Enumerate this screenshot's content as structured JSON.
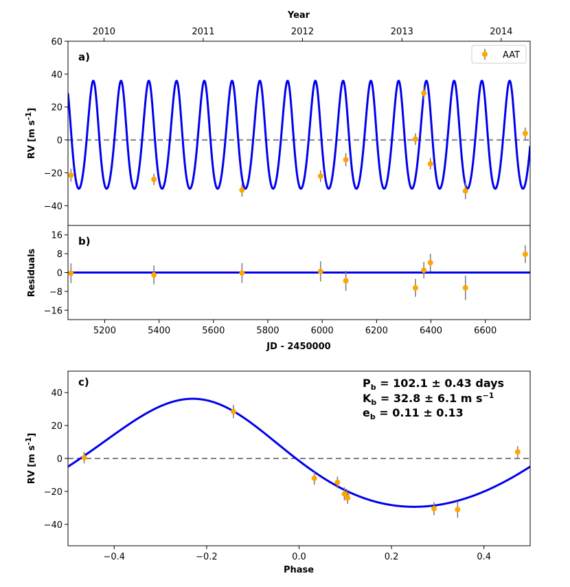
{
  "colors": {
    "model": "#0000ee",
    "points": "#ffa500",
    "errorbars": "#808080",
    "zero_line": "#808080"
  },
  "chart_data": [
    {
      "panel": "a",
      "type": "line",
      "label": "a)",
      "ylabel_main": "RV [m s",
      "ylabel_unit_exp": "-1",
      "ylabel_tail": "]",
      "ylim": [
        -52,
        60
      ],
      "yticks": [
        -40,
        -20,
        0,
        20,
        40,
        60
      ],
      "xlim": [
        5065,
        6765
      ],
      "top_axis": {
        "label": "Year",
        "ticks": [
          {
            "jd": 5197.5,
            "label": "2010"
          },
          {
            "jd": 5562.5,
            "label": "2011"
          },
          {
            "jd": 5927.5,
            "label": "2012"
          },
          {
            "jd": 6293.5,
            "label": "2013"
          },
          {
            "jd": 6658.5,
            "label": "2014"
          }
        ]
      },
      "legend": {
        "position": "top-right",
        "label": "AAT"
      },
      "model": {
        "K": 32.8,
        "P": 102.1,
        "e": 0.11,
        "offset": -0.3,
        "phase_ref_jd": 5065
      },
      "series": [
        {
          "name": "AAT",
          "x": [
            5076,
            5381,
            5705,
            5994,
            6087,
            6343,
            6374,
            6398,
            6527,
            6747
          ],
          "y": [
            -21.5,
            -24,
            -30.5,
            -22,
            -12,
            0.5,
            28.5,
            -14.5,
            -31,
            4
          ],
          "err": [
            4,
            3.5,
            4,
            3.5,
            4,
            3.5,
            4,
            3.5,
            5,
            3.5
          ]
        }
      ]
    },
    {
      "panel": "b",
      "type": "scatter",
      "label": "b)",
      "ylabel": "Residuals",
      "xlabel": "JD - 2450000",
      "ylim": [
        -20,
        20
      ],
      "yticks": [
        -16,
        -8,
        0,
        8,
        16
      ],
      "xlim": [
        5065,
        6765
      ],
      "xticks": [
        5200,
        5400,
        5600,
        5800,
        6000,
        6200,
        6400,
        6600
      ],
      "series": [
        {
          "name": "residuals",
          "x": [
            5076,
            5381,
            5705,
            5994,
            6087,
            6343,
            6374,
            6398,
            6527,
            6747
          ],
          "y": [
            -0.3,
            -1,
            -0.2,
            0.5,
            -3.5,
            -6.5,
            1,
            4.2,
            -6.5,
            7.8
          ],
          "err": [
            4.2,
            4,
            4.2,
            4.3,
            4.3,
            3.8,
            3.5,
            3.8,
            5.2,
            3.8
          ]
        }
      ]
    },
    {
      "panel": "c",
      "type": "line",
      "label": "c)",
      "ylabel_main": "RV [m s",
      "ylabel_unit_exp": "-1",
      "ylabel_tail": "]",
      "xlabel": "Phase",
      "xlim": [
        -0.5,
        0.5
      ],
      "ylim": [
        -53,
        53
      ],
      "xticks": [
        -0.4,
        -0.2,
        0.0,
        0.2,
        0.4
      ],
      "xtick_labels": [
        "−0.4",
        "−0.2",
        "0.0",
        "0.2",
        "0.4"
      ],
      "yticks": [
        -40,
        -20,
        0,
        20,
        40
      ],
      "ytick_labels": [
        "−40",
        "−20",
        "0",
        "20",
        "40"
      ],
      "model": {
        "K": 32.8,
        "e": 0.11,
        "peak_phase": -0.23
      },
      "series": [
        {
          "name": "AAT",
          "x": [
            -0.465,
            -0.142,
            0.033,
            0.083,
            0.098,
            0.103,
            0.105,
            0.292,
            0.343,
            0.473
          ],
          "y": [
            0.5,
            28.5,
            -12,
            -14.5,
            -21.5,
            -22,
            -24,
            -30.5,
            -31,
            4
          ],
          "err": [
            3.5,
            4,
            4,
            3.5,
            4,
            3.5,
            3.5,
            4,
            5,
            3.5
          ]
        }
      ],
      "annotations": [
        {
          "main": "P",
          "sub": "b",
          "text": " = 102.1 ± 0.43 days"
        },
        {
          "main": "K",
          "sub": "b",
          "text": " = 32.8 ± 6.1 m s",
          "sup": "−1"
        },
        {
          "main": "e",
          "sub": "b",
          "text": " = 0.11 ± 0.13"
        }
      ]
    }
  ]
}
